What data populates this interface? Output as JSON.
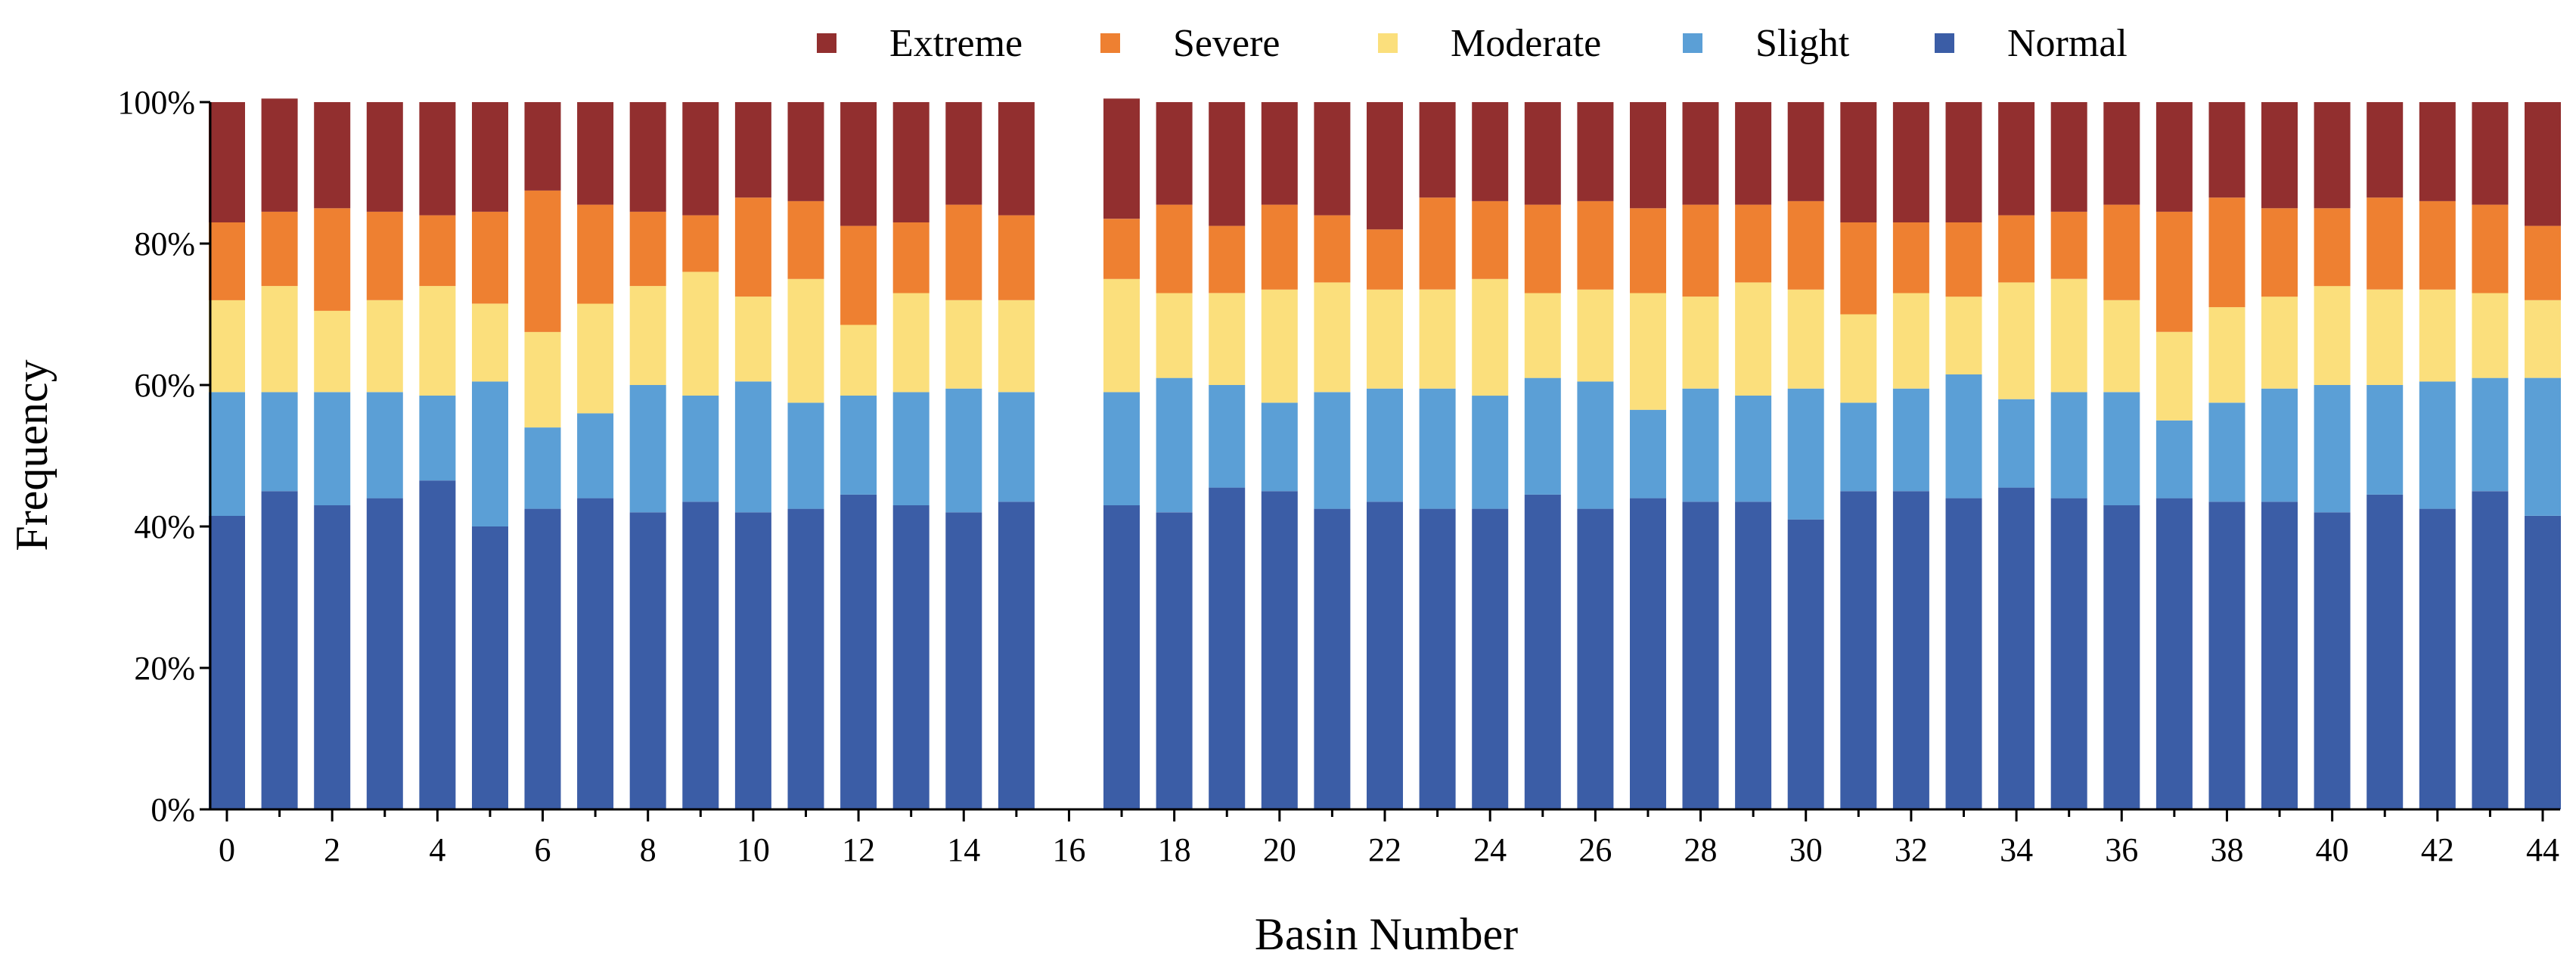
{
  "chart_data": {
    "type": "bar",
    "stacked": true,
    "normalized": true,
    "xlabel": "Basin Number",
    "ylabel": "Frequency",
    "ylim": [
      0,
      100
    ],
    "yticks": [
      "0%",
      "20%",
      "40%",
      "60%",
      "80%",
      "100%"
    ],
    "xticks": [
      "0",
      "2",
      "4",
      "6",
      "8",
      "10",
      "12",
      "14",
      "16",
      "18",
      "20",
      "22",
      "24",
      "26",
      "28",
      "30",
      "32",
      "34",
      "36",
      "38",
      "40",
      "42",
      "44"
    ],
    "legend_position": "top",
    "legend_order": [
      "Extreme",
      "Severe",
      "Moderate",
      "Slight",
      "Normal"
    ],
    "colors": {
      "Normal": "#3b5da6",
      "Slight": "#5b9fd6",
      "Moderate": "#fbdf7c",
      "Severe": "#ee8031",
      "Extreme": "#922f2f"
    },
    "categories": [
      0,
      1,
      2,
      3,
      4,
      5,
      6,
      7,
      8,
      9,
      10,
      11,
      12,
      13,
      14,
      15,
      16,
      17,
      18,
      19,
      20,
      21,
      22,
      23,
      24,
      25,
      26,
      27,
      28,
      29,
      30,
      31,
      32,
      33,
      34,
      35,
      36,
      37,
      38,
      39,
      40,
      41,
      42,
      43,
      44
    ],
    "series": [
      {
        "name": "Normal",
        "values": [
          41.5,
          45,
          43,
          44,
          46.5,
          40,
          42.5,
          44,
          42,
          43.5,
          42,
          42.5,
          44.5,
          43,
          42,
          43.5,
          null,
          43,
          42,
          45.5,
          45,
          42.5,
          43.5,
          42.5,
          42.5,
          44.5,
          42.5,
          44,
          43.5,
          43.5,
          41,
          45,
          45,
          44,
          45.5,
          44,
          43,
          44,
          43.5,
          43.5,
          42,
          44.5,
          42.5,
          45,
          41.5
        ]
      },
      {
        "name": "Slight",
        "values": [
          17.5,
          14,
          16,
          15,
          12,
          20.5,
          11.5,
          12,
          18,
          15,
          18.5,
          15,
          14,
          16,
          17.5,
          15.5,
          null,
          16,
          19,
          14.5,
          12.5,
          16.5,
          16,
          17,
          16,
          16.5,
          18,
          12.5,
          16,
          15,
          18.5,
          12.5,
          14.5,
          17.5,
          12.5,
          15,
          16,
          11,
          14,
          16,
          18,
          15.5,
          18,
          16,
          19.5
        ]
      },
      {
        "name": "Moderate",
        "values": [
          13,
          15,
          11.5,
          13,
          15.5,
          11,
          13.5,
          15.5,
          14,
          17.5,
          12,
          17.5,
          10,
          14,
          12.5,
          13,
          null,
          16,
          12,
          13,
          16,
          15.5,
          14,
          14,
          16.5,
          12,
          13,
          16.5,
          13,
          16,
          14,
          12.5,
          13.5,
          11,
          16.5,
          16,
          13,
          12.5,
          13.5,
          13,
          14,
          13.5,
          13,
          12,
          11
        ]
      },
      {
        "name": "Severe",
        "values": [
          11,
          10.5,
          14.5,
          12.5,
          10,
          13,
          20,
          14,
          10.5,
          8,
          14,
          11,
          14,
          10,
          13.5,
          12,
          null,
          8.5,
          12.5,
          9.5,
          12,
          9.5,
          8.5,
          13,
          11,
          12.5,
          12.5,
          12,
          13,
          11,
          12.5,
          13,
          10,
          10.5,
          9.5,
          9.5,
          13.5,
          17,
          15.5,
          12.5,
          11,
          13,
          12.5,
          12.5,
          10.5
        ]
      },
      {
        "name": "Extreme",
        "values": [
          17,
          16,
          15,
          15.5,
          16,
          15.5,
          12.5,
          14.5,
          15.5,
          16,
          13.5,
          14,
          17.5,
          17,
          14.5,
          16,
          null,
          17,
          14.5,
          17.5,
          14.5,
          16,
          18,
          13.5,
          14,
          14.5,
          14,
          15,
          14.5,
          14.5,
          14,
          17,
          17,
          17,
          16,
          15.5,
          14.5,
          15.5,
          13.5,
          15,
          15,
          13.5,
          14,
          14.5,
          17.5
        ]
      }
    ]
  }
}
